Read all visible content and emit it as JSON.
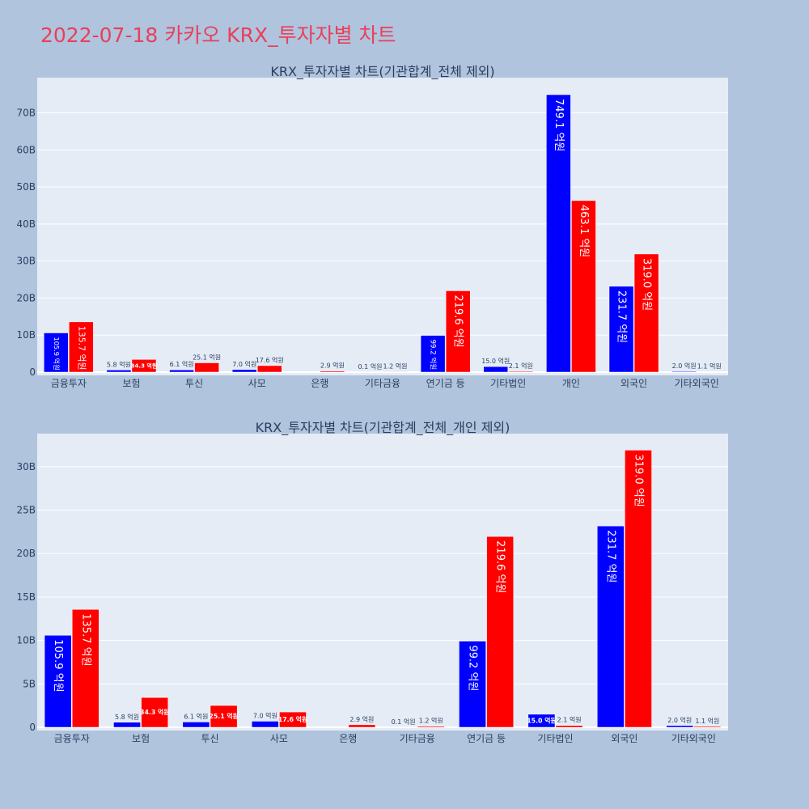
{
  "page": {
    "title": "2022-07-18 카카오 KRX_투자자별 차트"
  },
  "colors": {
    "background": "#b0c4de",
    "plot_bg": "#e5ecf6",
    "buy": "#0000ff",
    "sell": "#ff0000",
    "title": "#e8405a",
    "text": "#2a3f5f",
    "grid": "#ffffff"
  },
  "chart_data": [
    {
      "type": "bar",
      "title": "KRX_투자자별 차트(기관합계_전체 제외)",
      "categories": [
        "금융투자",
        "보험",
        "투신",
        "사모",
        "은행",
        "기타금융",
        "연기금 등",
        "기타법인",
        "개인",
        "외국인",
        "기타외국인"
      ],
      "series": [
        {
          "color": "#0000ff",
          "values": [
            10.59,
            0.58,
            0.61,
            0.7,
            0.0,
            0.01,
            9.92,
            1.5,
            74.91,
            23.17,
            0.2
          ],
          "labels": [
            "105.9 억원",
            "5.8 억원",
            "6.1 억원",
            "7.0 억원",
            "",
            "0.1 억원",
            "99.2 억원",
            "15.0 억원",
            "749.1 억원",
            "231.7 억원",
            "2.0 억원"
          ]
        },
        {
          "color": "#ff0000",
          "values": [
            13.57,
            3.43,
            2.51,
            1.76,
            0.29,
            0.12,
            21.96,
            0.21,
            46.31,
            31.9,
            0.11
          ],
          "labels": [
            "135.7 억원",
            "34.3 억원",
            "25.1 억원",
            "17.6 억원",
            "2.9 억원",
            "1.2 억원",
            "219.6 억원",
            "2.1 억원",
            "463.1 억원",
            "319.0 억원",
            "1.1 억원"
          ]
        }
      ],
      "ylim": [
        0,
        79.5
      ],
      "yticks": [
        0,
        10,
        20,
        30,
        40,
        50,
        60,
        70
      ],
      "ytick_labels": [
        "0",
        "10B",
        "20B",
        "30B",
        "40B",
        "50B",
        "60B",
        "70B"
      ],
      "grid": true
    },
    {
      "type": "bar",
      "title": "KRX_투자자별 차트(기관합계_전체_개인 제외)",
      "categories": [
        "금융투자",
        "보험",
        "투신",
        "사모",
        "은행",
        "기타금융",
        "연기금 등",
        "기타법인",
        "외국인",
        "기타외국인"
      ],
      "series": [
        {
          "color": "#0000ff",
          "values": [
            10.59,
            0.58,
            0.61,
            0.7,
            0.0,
            0.01,
            9.92,
            1.5,
            23.17,
            0.2
          ],
          "labels": [
            "105.9 억원",
            "5.8 억원",
            "6.1 억원",
            "7.0 억원",
            "",
            "0.1 억원",
            "99.2 억원",
            "15.0 억원",
            "231.7 억원",
            "2.0 억원"
          ]
        },
        {
          "color": "#ff0000",
          "values": [
            13.57,
            3.43,
            2.51,
            1.76,
            0.29,
            0.12,
            21.96,
            0.21,
            31.9,
            0.11
          ],
          "labels": [
            "135.7 억원",
            "34.3 억원",
            "25.1 억원",
            "17.6 억원",
            "2.9 억원",
            "1.2 억원",
            "219.6 억원",
            "2.1 억원",
            "319.0 억원",
            "1.1 억원"
          ]
        }
      ],
      "ylim": [
        0,
        33.8
      ],
      "yticks": [
        0,
        5,
        10,
        15,
        20,
        25,
        30
      ],
      "ytick_labels": [
        "0",
        "5B",
        "10B",
        "15B",
        "20B",
        "25B",
        "30B"
      ],
      "grid": true
    }
  ]
}
